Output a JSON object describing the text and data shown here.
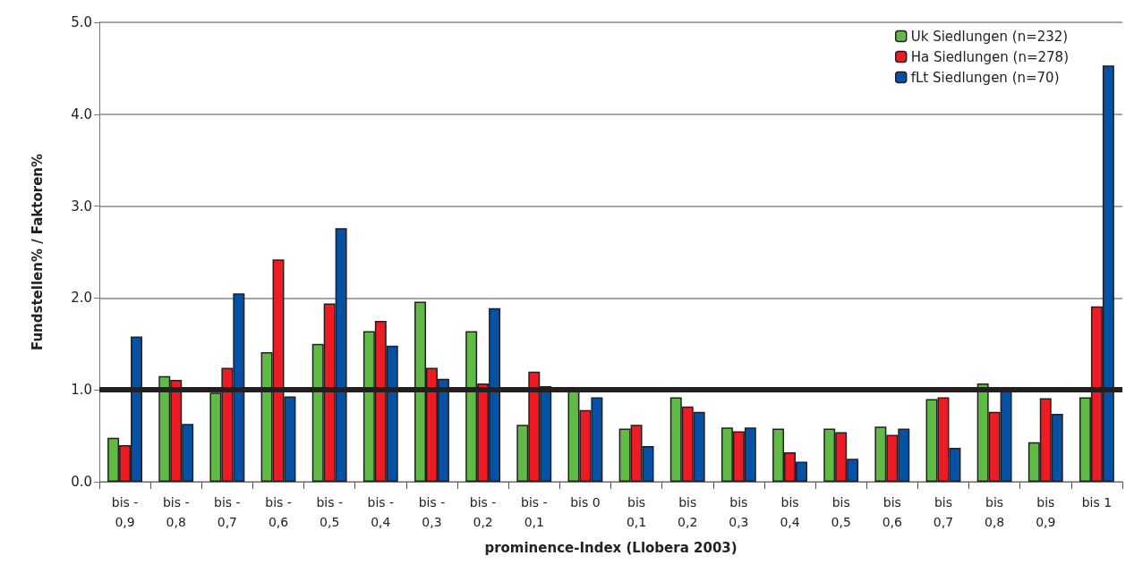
{
  "chart_data": {
    "type": "bar",
    "xlabel": "prominence-Index (Llobera 2003)",
    "ylabel": "Fundstellen% / Faktoren%",
    "categories": [
      "bis -\n0,9",
      "bis -\n0,8",
      "bis -\n0,7",
      "bis -\n0,6",
      "bis -\n0,5",
      "bis -\n0,4",
      "bis -\n0,3",
      "bis -\n0,2",
      "bis -\n0,1",
      "bis 0",
      "bis\n0,1",
      "bis\n0,2",
      "bis\n0,3",
      "bis\n0,4",
      "bis\n0,5",
      "bis\n0,6",
      "bis\n0,7",
      "bis\n0,8",
      "bis\n0,9",
      "bis 1"
    ],
    "series": [
      {
        "name": "Uk Siedlungen (n=232)",
        "color": "#5fba46",
        "values": [
          0.48,
          1.15,
          0.97,
          1.41,
          1.5,
          1.64,
          1.96,
          1.64,
          0.62,
          0.99,
          0.58,
          0.92,
          0.59,
          0.58,
          0.58,
          0.6,
          0.9,
          1.07,
          0.43,
          0.92
        ]
      },
      {
        "name": "Ha Siedlungen (n=278)",
        "color": "#ed1c24",
        "values": [
          0.4,
          1.11,
          1.24,
          2.42,
          1.94,
          1.75,
          1.24,
          1.07,
          1.2,
          0.78,
          0.62,
          0.82,
          0.55,
          0.32,
          0.54,
          0.51,
          0.92,
          0.76,
          0.91,
          1.91
        ]
      },
      {
        "name": "fLt Siedlungen (n=70)",
        "color": "#0451a5",
        "values": [
          1.58,
          0.63,
          2.05,
          0.93,
          2.76,
          1.48,
          1.12,
          1.89,
          1.04,
          0.92,
          0.39,
          0.76,
          0.59,
          0.22,
          0.25,
          0.58,
          0.37,
          1.0,
          0.74,
          4.53
        ]
      }
    ],
    "ylim": [
      0,
      5
    ],
    "yticks": [
      {
        "value": 0,
        "label": "0.0"
      },
      {
        "value": 1,
        "label": "1.0"
      },
      {
        "value": 2,
        "label": "2.0"
      },
      {
        "value": 3,
        "label": "3.0"
      },
      {
        "value": 4,
        "label": "4.0"
      },
      {
        "value": 5,
        "label": "5.0"
      }
    ],
    "ref_lines": [
      {
        "axis": "y",
        "value": 1,
        "color": "#231f20",
        "line_style": "solid"
      }
    ],
    "grid": "y",
    "legend": "top right"
  }
}
